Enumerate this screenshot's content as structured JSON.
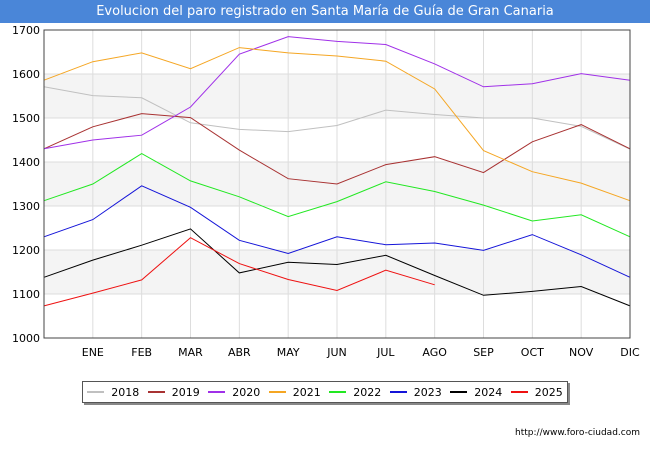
{
  "header": {
    "title": "Evolucion del paro registrado en Santa María de Guía de Gran Canaria"
  },
  "footer": {
    "url": "http://www.foro-ciudad.com"
  },
  "chart_data": {
    "type": "line",
    "title": "Evolucion del paro registrado en Santa María de Guía de Gran Canaria",
    "xlabel": "",
    "ylabel": "",
    "x": [
      "",
      "ENE",
      "FEB",
      "MAR",
      "ABR",
      "MAY",
      "JUN",
      "JUL",
      "AGO",
      "SEP",
      "OCT",
      "NOV",
      "DIC"
    ],
    "ylim": [
      1000,
      1700
    ],
    "yticks": [
      1000,
      1100,
      1200,
      1300,
      1400,
      1500,
      1600,
      1700
    ],
    "grid": true,
    "legend_position": "bottom",
    "series": [
      {
        "name": "2018",
        "color": "#c0c0c0",
        "values": [
          1571,
          1551,
          1546,
          1489,
          1474,
          1469,
          1483,
          1518,
          1508,
          1500,
          1500,
          1481,
          1429
        ]
      },
      {
        "name": "2019",
        "color": "#a83232",
        "values": [
          1430,
          1480,
          1510,
          1501,
          1427,
          1362,
          1350,
          1394,
          1412,
          1376,
          1446,
          1485,
          1430
        ]
      },
      {
        "name": "2020",
        "color": "#a030e8",
        "values": [
          1430,
          1450,
          1461,
          1525,
          1645,
          1685,
          1674,
          1667,
          1623,
          1571,
          1578,
          1601,
          1586
        ]
      },
      {
        "name": "2021",
        "color": "#f5a623",
        "values": [
          1586,
          1628,
          1648,
          1612,
          1660,
          1648,
          1641,
          1629,
          1566,
          1426,
          1378,
          1352,
          1312
        ]
      },
      {
        "name": "2022",
        "color": "#22e822",
        "values": [
          1312,
          1350,
          1419,
          1357,
          1321,
          1276,
          1310,
          1355,
          1333,
          1302,
          1266,
          1280,
          1230
        ]
      },
      {
        "name": "2023",
        "color": "#1414d8",
        "values": [
          1230,
          1269,
          1346,
          1297,
          1222,
          1192,
          1230,
          1212,
          1216,
          1199,
          1235,
          1189,
          1138
        ]
      },
      {
        "name": "2024",
        "color": "#000000",
        "values": [
          1138,
          1177,
          1211,
          1248,
          1148,
          1172,
          1167,
          1188,
          1142,
          1097,
          1106,
          1117,
          1073
        ]
      },
      {
        "name": "2025",
        "color": "#ee1111",
        "values": [
          1073,
          1102,
          1132,
          1228,
          1169,
          1133,
          1108,
          1154,
          1121,
          null,
          null,
          null,
          null
        ]
      }
    ]
  }
}
